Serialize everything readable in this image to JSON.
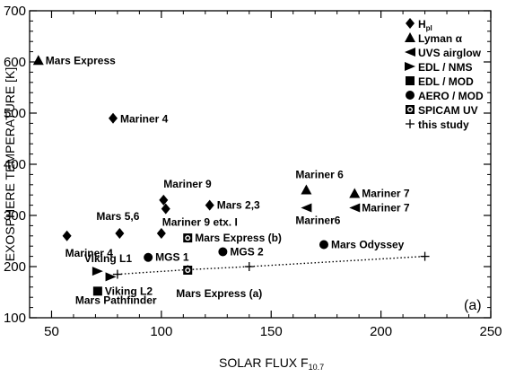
{
  "chart_data": {
    "type": "scatter",
    "xlabel": "SOLAR FLUX F",
    "xlabel_sub": "10.7",
    "ylabel": "EXOSPHERE TEMPERATURE  [K]",
    "xlim": [
      40,
      250
    ],
    "ylim": [
      100,
      700
    ],
    "xticks": [
      50,
      100,
      150,
      200,
      250
    ],
    "yticks": [
      100,
      200,
      300,
      400,
      500,
      600,
      700
    ],
    "panel_label": "(a)",
    "legend_position": "top-right",
    "legend": [
      {
        "marker": "diamond",
        "label": "H",
        "sub": "pl"
      },
      {
        "marker": "triangle-up",
        "label": "Lyman α"
      },
      {
        "marker": "triangle-left",
        "label": "UVS airglow"
      },
      {
        "marker": "triangle-right",
        "label": "EDL / NMS"
      },
      {
        "marker": "square",
        "label": "EDL / MOD"
      },
      {
        "marker": "circle",
        "label": "AERO / MOD"
      },
      {
        "marker": "circle-in-square",
        "label": "SPICAM UV"
      },
      {
        "marker": "plus",
        "label": "this study"
      }
    ],
    "points": [
      {
        "x": 44,
        "y": 603,
        "marker": "triangle-up",
        "label": "Mars Express"
      },
      {
        "x": 78,
        "y": 490,
        "marker": "diamond",
        "label": "Mariner 4"
      },
      {
        "x": 57,
        "y": 260,
        "marker": "diamond",
        "label": "Mariner 4"
      },
      {
        "x": 81,
        "y": 265,
        "marker": "diamond",
        "label": "Mars 5,6"
      },
      {
        "x": 100,
        "y": 265,
        "marker": "diamond",
        "label": ""
      },
      {
        "x": 101,
        "y": 330,
        "marker": "diamond",
        "label": "Mariner 9"
      },
      {
        "x": 102,
        "y": 313,
        "marker": "diamond",
        "label": "Mariner 9 etx. I"
      },
      {
        "x": 122,
        "y": 320,
        "marker": "diamond",
        "label": "Mars 2,3"
      },
      {
        "x": 166,
        "y": 350,
        "marker": "triangle-up",
        "label": "Mariner 6"
      },
      {
        "x": 188,
        "y": 343,
        "marker": "triangle-up",
        "label": "Mariner 7"
      },
      {
        "x": 166,
        "y": 315,
        "marker": "triangle-left",
        "label": "Mariner6"
      },
      {
        "x": 188,
        "y": 315,
        "marker": "triangle-left",
        "label": "Mariner 7"
      },
      {
        "x": 112,
        "y": 256,
        "marker": "circle-in-square",
        "label": "Mars Express (b)"
      },
      {
        "x": 112,
        "y": 193,
        "marker": "circle-in-square",
        "label": "Mars Express (a)"
      },
      {
        "x": 174,
        "y": 243,
        "marker": "circle",
        "label": "Mars Odyssey"
      },
      {
        "x": 128,
        "y": 229,
        "marker": "circle",
        "label": "MGS 2"
      },
      {
        "x": 94,
        "y": 218,
        "marker": "circle",
        "label": "MGS 1"
      },
      {
        "x": 71,
        "y": 191,
        "marker": "triangle-right",
        "label": "Viking L1"
      },
      {
        "x": 77,
        "y": 180,
        "marker": "triangle-right",
        "label": ""
      },
      {
        "x": 71,
        "y": 152,
        "marker": "square",
        "label": "Viking L2"
      },
      {
        "x": 71,
        "y": 127,
        "marker": "none",
        "label": "Mars Pathfinder"
      }
    ],
    "this_study": {
      "x": [
        80,
        112,
        140,
        220
      ],
      "y": [
        185,
        194,
        200,
        220
      ],
      "line_style": "dotted"
    }
  }
}
